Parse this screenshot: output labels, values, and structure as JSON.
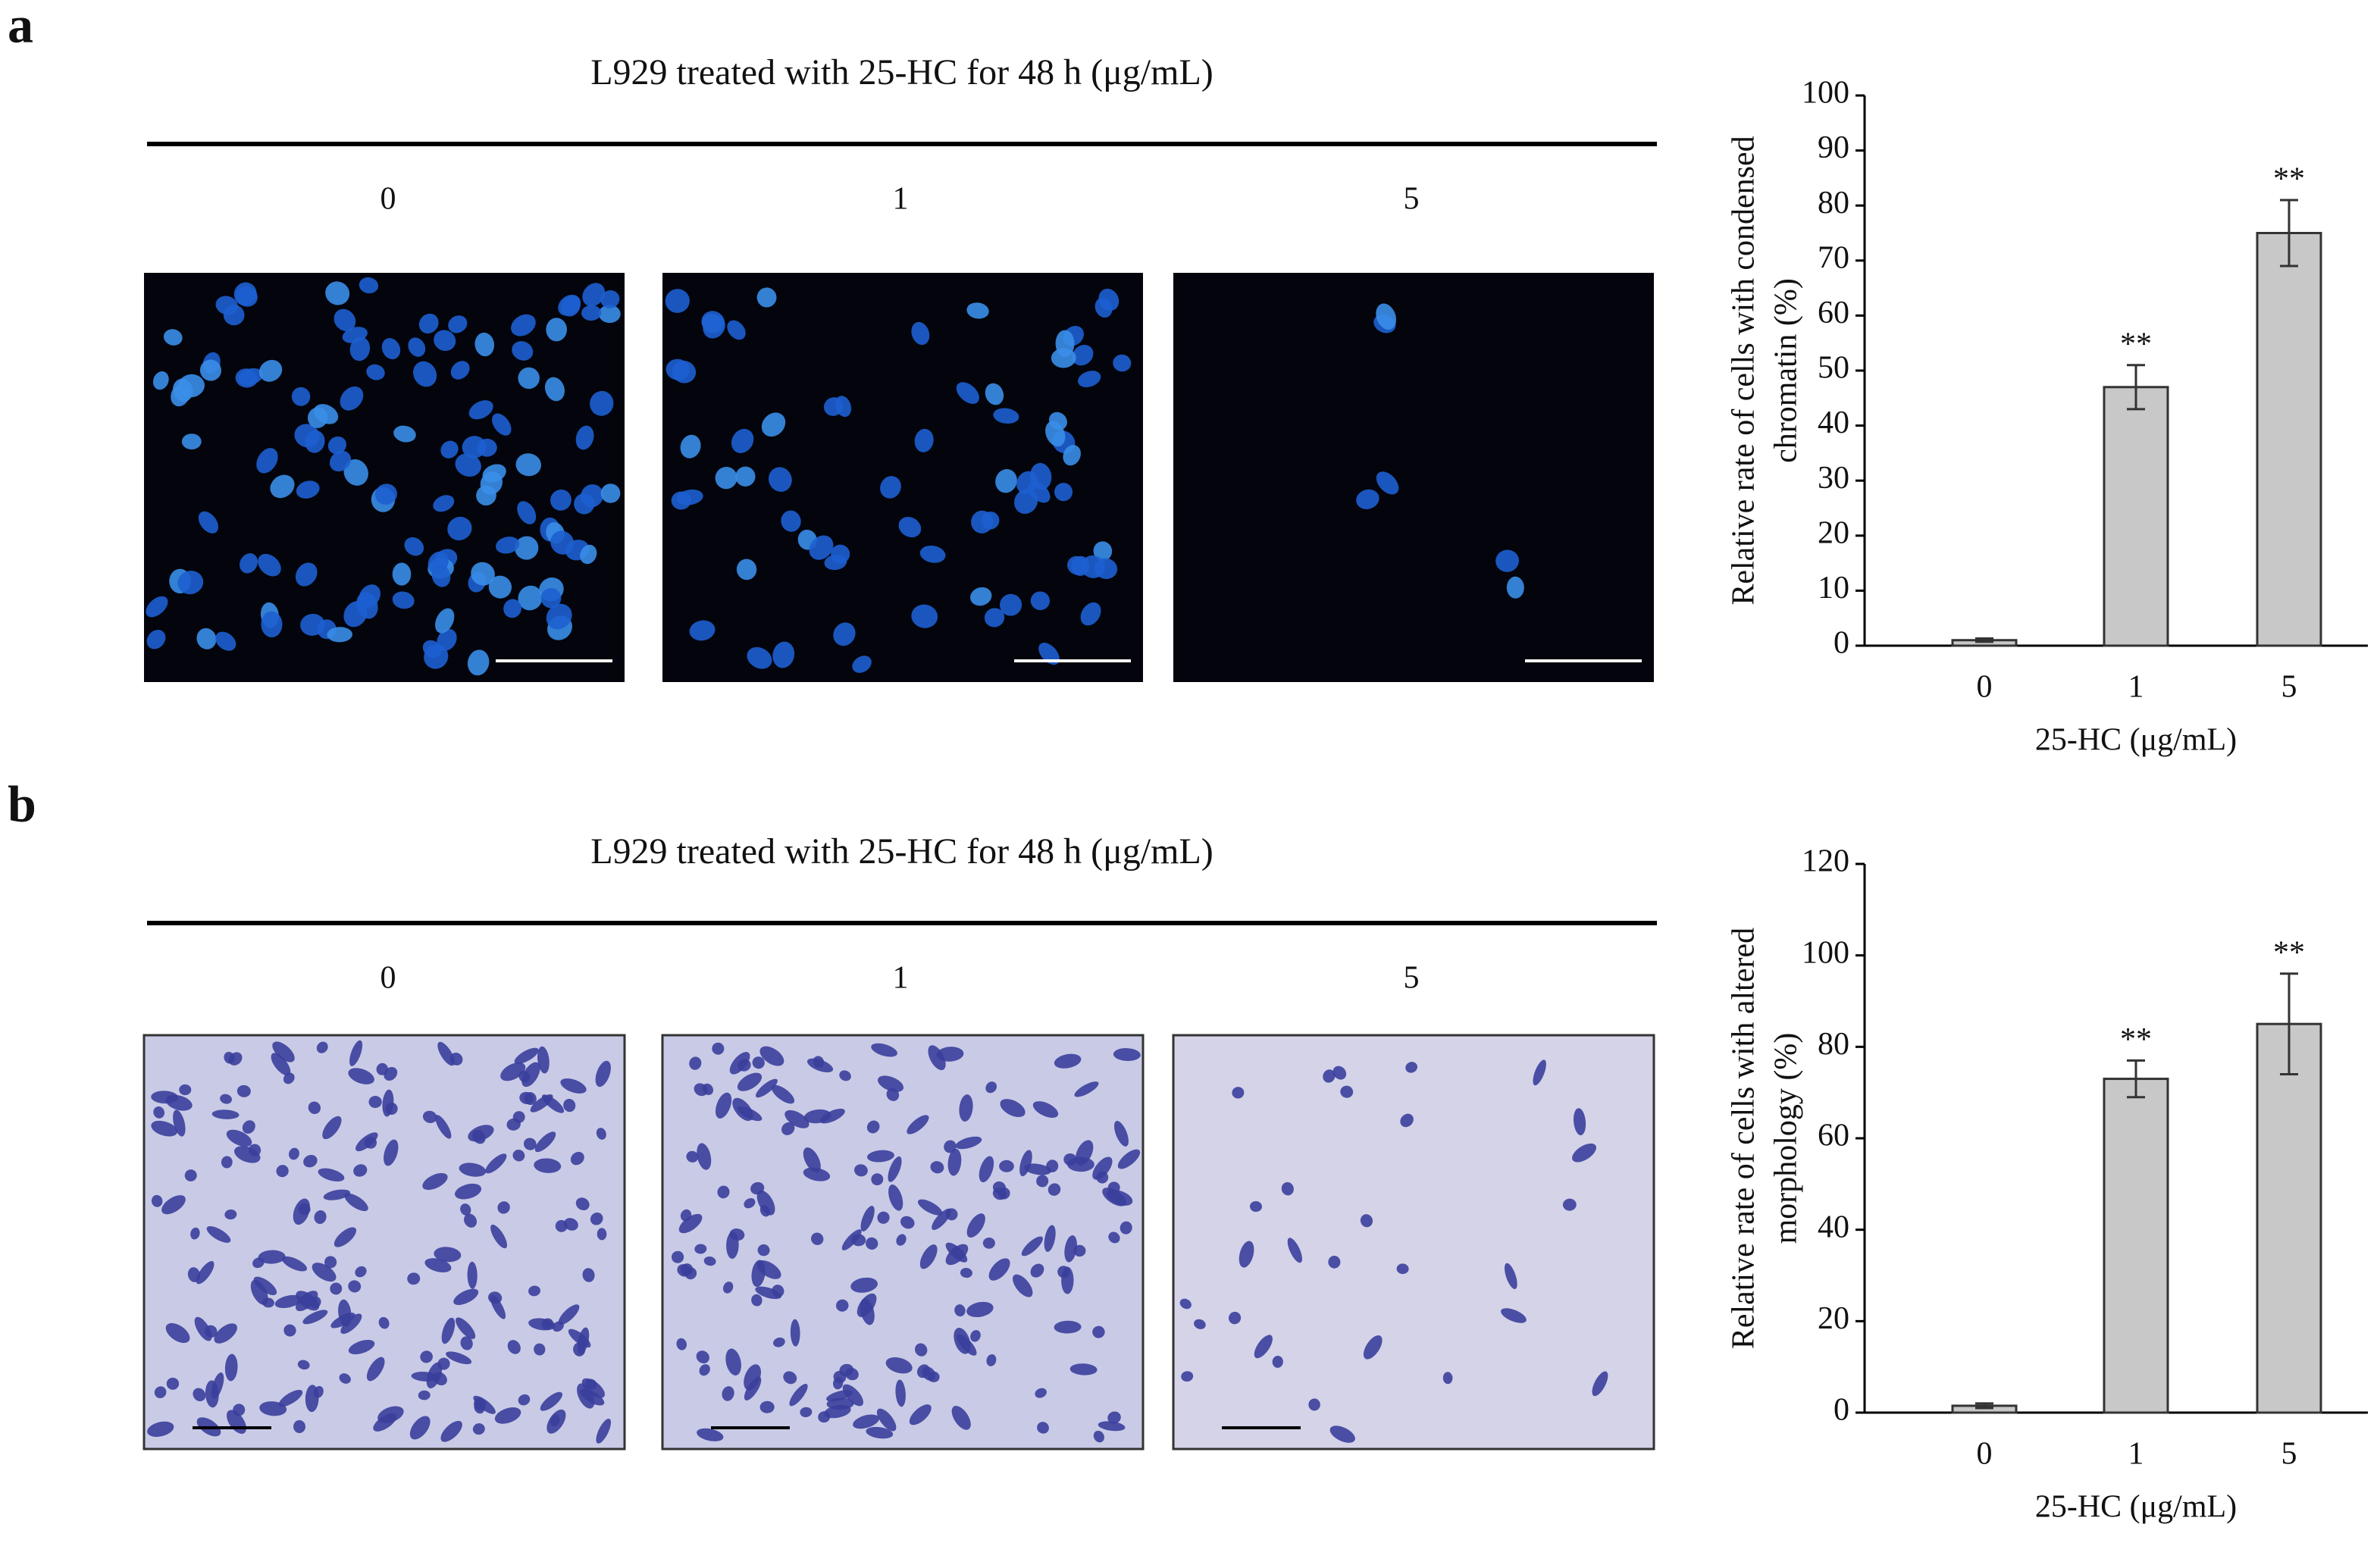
{
  "panels": [
    {
      "letter": "a",
      "title": "L929 treated with 25-HC for 48 h (μg/mL)",
      "image_labels": [
        "0",
        "1",
        "5"
      ]
    },
    {
      "letter": "b",
      "title": "L929 treated with 25-HC for 48 h (μg/mL)",
      "image_labels": [
        "0",
        "1",
        "5"
      ]
    }
  ],
  "chart_data": [
    {
      "type": "bar",
      "ylabel": [
        "Relative rate of cells with condensed",
        "chromatin (%)"
      ],
      "xlabel": "25-HC (μg/mL)",
      "categories": [
        "0",
        "1",
        "5"
      ],
      "values": [
        1,
        47,
        75
      ],
      "errors": [
        0.3,
        4,
        6
      ],
      "annotations": [
        null,
        "**",
        "**"
      ],
      "color": "#c8c8c8",
      "ylim": [
        0,
        100
      ],
      "yticks": [
        0,
        10,
        20,
        30,
        40,
        50,
        60,
        70,
        80,
        90,
        100
      ]
    },
    {
      "type": "bar",
      "ylabel": [
        "Relative rate of cells with altered",
        "morphology (%)"
      ],
      "xlabel": "25-HC (μg/mL)",
      "categories": [
        "0",
        "1",
        "5"
      ],
      "values": [
        1.5,
        73,
        85
      ],
      "errors": [
        0.5,
        4,
        11
      ],
      "annotations": [
        null,
        "**",
        "**"
      ],
      "color": "#c8c8c8",
      "ylim": [
        0,
        120
      ],
      "yticks": [
        0,
        20,
        40,
        60,
        80,
        100,
        120
      ]
    }
  ]
}
